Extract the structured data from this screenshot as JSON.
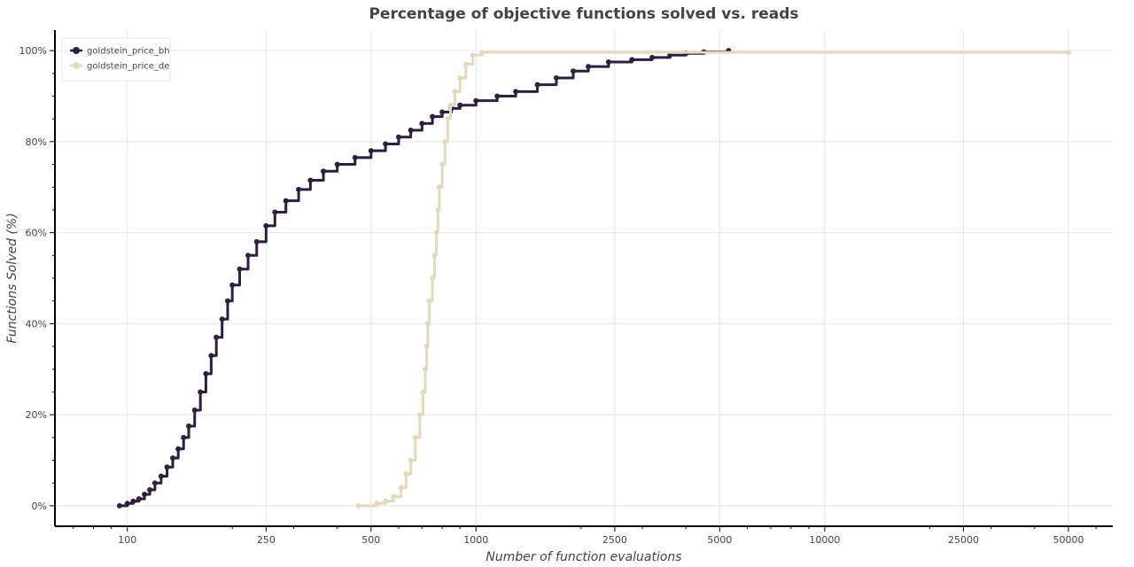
{
  "chart_data": {
    "type": "line",
    "title": "Percentage of objective functions solved vs. reads",
    "xlabel": "Number of function evaluations",
    "ylabel": "Functions Solved (%)",
    "x_scale": "log",
    "xlim": [
      62,
      67000
    ],
    "ylim": [
      -4.5,
      104.5
    ],
    "x_ticks": [
      100,
      250,
      500,
      1000,
      2500,
      5000,
      10000,
      25000,
      50000
    ],
    "x_tick_labels": [
      "100",
      "250",
      "500",
      "1000",
      "2500",
      "5000",
      "10000",
      "25000",
      "50000"
    ],
    "y_ticks": [
      0,
      20,
      40,
      60,
      80,
      100
    ],
    "y_tick_labels": [
      "0%",
      "20%",
      "40%",
      "60%",
      "80%",
      "100%"
    ],
    "grid": true,
    "legend_position": "top-left",
    "series": [
      {
        "name": "goldstein_price_bh",
        "color": "#2e1f3e",
        "points": [
          [
            95,
            0
          ],
          [
            100,
            0.5
          ],
          [
            104,
            1
          ],
          [
            108,
            1.5
          ],
          [
            112,
            2.5
          ],
          [
            116,
            3.5
          ],
          [
            120,
            5
          ],
          [
            125,
            6.5
          ],
          [
            130,
            8.5
          ],
          [
            135,
            10.5
          ],
          [
            140,
            12.5
          ],
          [
            145,
            15
          ],
          [
            150,
            17.5
          ],
          [
            156,
            21
          ],
          [
            162,
            25
          ],
          [
            168,
            29
          ],
          [
            174,
            33
          ],
          [
            180,
            37
          ],
          [
            187,
            41
          ],
          [
            194,
            45
          ],
          [
            200,
            48.5
          ],
          [
            210,
            52
          ],
          [
            222,
            55
          ],
          [
            235,
            58
          ],
          [
            250,
            61.5
          ],
          [
            265,
            64.5
          ],
          [
            285,
            67
          ],
          [
            310,
            69.5
          ],
          [
            335,
            71.5
          ],
          [
            365,
            73.5
          ],
          [
            400,
            75
          ],
          [
            450,
            76.5
          ],
          [
            500,
            78
          ],
          [
            550,
            79.5
          ],
          [
            600,
            81
          ],
          [
            650,
            82.5
          ],
          [
            700,
            84
          ],
          [
            750,
            85.5
          ],
          [
            800,
            86.5
          ],
          [
            850,
            87.3
          ],
          [
            900,
            88
          ],
          [
            1000,
            89
          ],
          [
            1150,
            90
          ],
          [
            1300,
            91
          ],
          [
            1500,
            92.5
          ],
          [
            1700,
            94
          ],
          [
            1900,
            95.5
          ],
          [
            2100,
            96.5
          ],
          [
            2400,
            97.5
          ],
          [
            2800,
            98
          ],
          [
            3200,
            98.5
          ],
          [
            3600,
            99
          ],
          [
            4000,
            99.4
          ],
          [
            4500,
            99.7
          ],
          [
            5300,
            100
          ]
        ]
      },
      {
        "name": "goldstein_price_de",
        "color": "#e3d9bd",
        "points": [
          [
            460,
            0
          ],
          [
            520,
            0.5
          ],
          [
            550,
            1
          ],
          [
            580,
            2
          ],
          [
            610,
            4
          ],
          [
            630,
            7
          ],
          [
            650,
            10
          ],
          [
            670,
            15
          ],
          [
            690,
            20
          ],
          [
            705,
            25
          ],
          [
            715,
            30
          ],
          [
            722,
            35
          ],
          [
            728,
            40
          ],
          [
            735,
            45
          ],
          [
            750,
            50
          ],
          [
            760,
            55
          ],
          [
            770,
            60
          ],
          [
            778,
            65
          ],
          [
            785,
            70
          ],
          [
            800,
            75
          ],
          [
            815,
            80
          ],
          [
            830,
            85
          ],
          [
            845,
            88
          ],
          [
            870,
            91
          ],
          [
            900,
            94
          ],
          [
            935,
            97
          ],
          [
            980,
            99
          ],
          [
            1040,
            99.6
          ],
          [
            50000,
            99.6
          ]
        ]
      }
    ]
  }
}
